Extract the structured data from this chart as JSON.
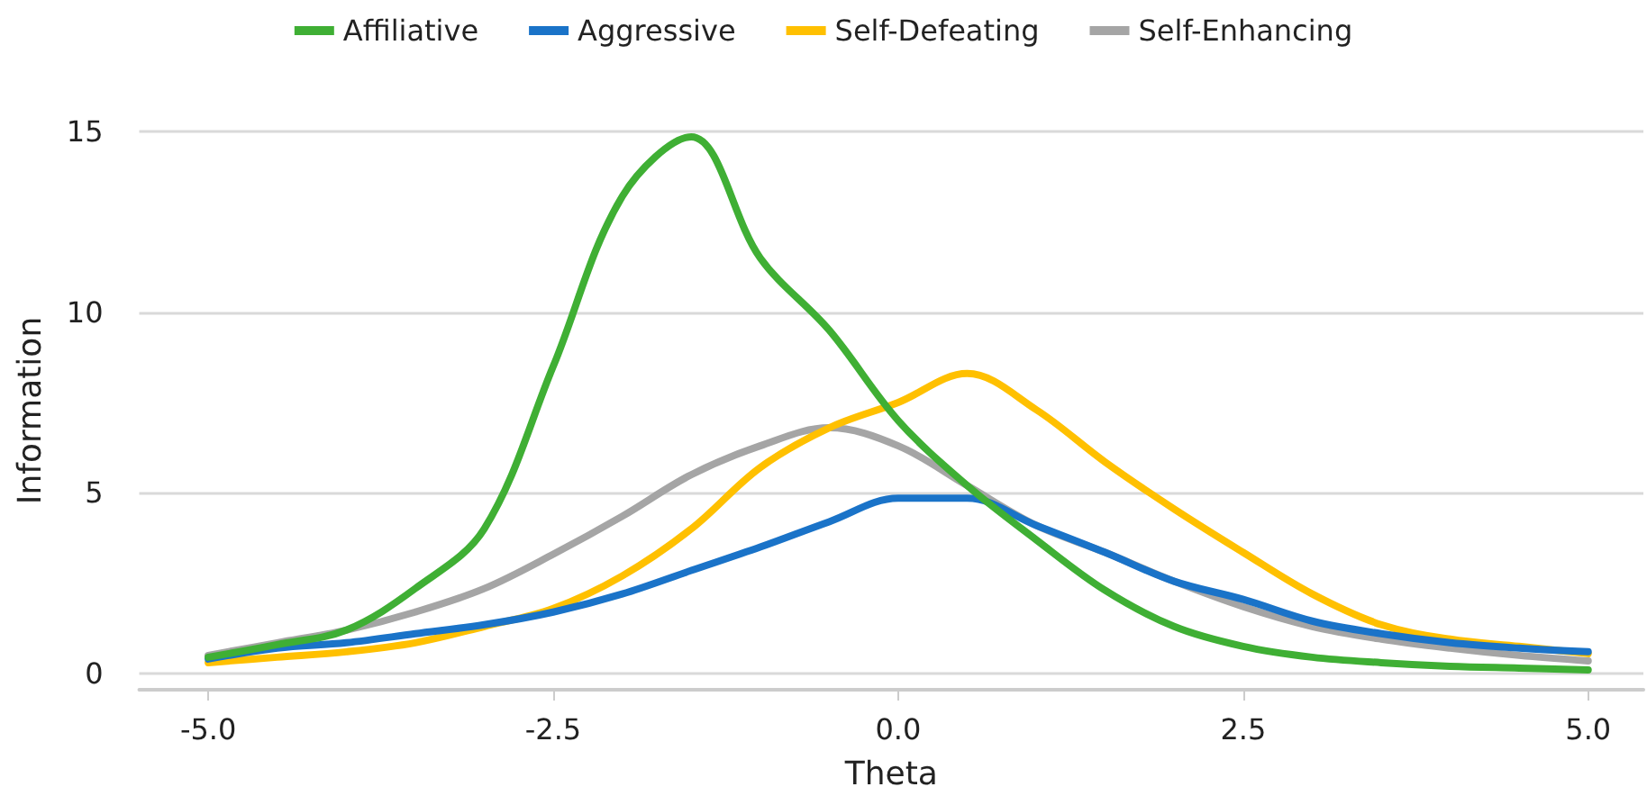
{
  "chart_data": {
    "type": "line",
    "xlabel": "Theta",
    "ylabel": "Information",
    "x": [
      -5,
      -4.5,
      -4,
      -3.5,
      -3,
      -2.5,
      -2,
      -1.5,
      -1,
      -0.5,
      0,
      0.5,
      1,
      1.5,
      2,
      2.5,
      3,
      3.5,
      4,
      4.5,
      5
    ],
    "series": [
      {
        "name": "Affiliative",
        "color": "#3faf34",
        "values": [
          0.45,
          0.8,
          1.2,
          2.35,
          4.0,
          8.5,
          13.2,
          14.85,
          11.5,
          9.5,
          7.0,
          5.2,
          3.7,
          2.3,
          1.3,
          0.75,
          0.45,
          0.3,
          0.2,
          0.15,
          0.1
        ]
      },
      {
        "name": "Aggressive",
        "color": "#1a73c8",
        "values": [
          0.4,
          0.7,
          0.85,
          1.1,
          1.35,
          1.7,
          2.2,
          2.85,
          3.5,
          4.2,
          4.85,
          4.85,
          4.1,
          3.35,
          2.55,
          2.05,
          1.45,
          1.1,
          0.85,
          0.7,
          0.6
        ]
      },
      {
        "name": "Self-Defeating",
        "color": "#ffc000",
        "values": [
          0.3,
          0.45,
          0.6,
          0.85,
          1.3,
          1.8,
          2.7,
          4.0,
          5.7,
          6.8,
          7.5,
          8.3,
          7.3,
          5.85,
          4.55,
          3.35,
          2.2,
          1.35,
          0.95,
          0.75,
          0.55
        ]
      },
      {
        "name": "Self-Enhancing",
        "color": "#a5a5a5",
        "values": [
          0.5,
          0.85,
          1.2,
          1.7,
          2.35,
          3.3,
          4.35,
          5.5,
          6.3,
          6.8,
          6.3,
          5.2,
          4.1,
          3.35,
          2.55,
          1.85,
          1.3,
          0.95,
          0.7,
          0.5,
          0.35
        ]
      }
    ],
    "xlim": [
      -5.5,
      5.4
    ],
    "ylim": [
      -0.45,
      15
    ],
    "xticks": [
      {
        "value": -5,
        "label": "-5.0"
      },
      {
        "value": -2.5,
        "label": "-2.5"
      },
      {
        "value": 0,
        "label": "0.0"
      },
      {
        "value": 2.5,
        "label": "2.5"
      },
      {
        "value": 5,
        "label": "5.0"
      }
    ],
    "yticks": [
      0,
      5,
      10,
      15
    ],
    "grid": "y",
    "legend": "top",
    "marker": "none",
    "line_style": "solid"
  }
}
